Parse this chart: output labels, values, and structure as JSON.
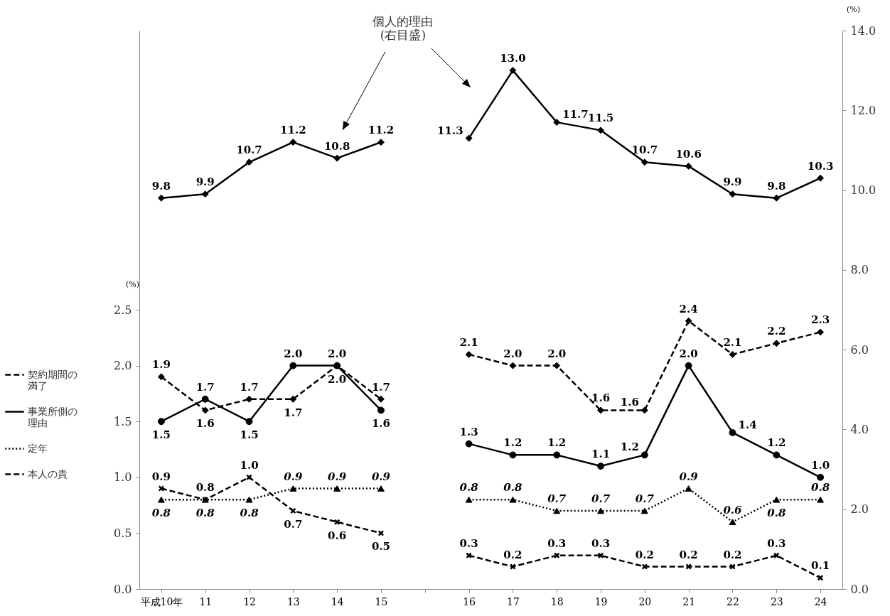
{
  "chart_data": {
    "type": "line",
    "categories": [
      "平成10年",
      "11",
      "12",
      "13",
      "14",
      "15",
      null,
      "16",
      "17",
      "18",
      "19",
      "20",
      "21",
      "22",
      "23",
      "24"
    ],
    "series": [
      {
        "color": "#000000",
        "axis": "y2",
        "marker": "diamond",
        "line_style": "solid",
        "values": [
          9.8,
          9.9,
          10.7,
          11.2,
          10.8,
          11.2,
          null,
          11.3,
          13.0,
          11.7,
          11.5,
          10.7,
          10.6,
          9.9,
          9.8,
          10.3
        ],
        "value_labels": [
          "9.8",
          "9.9",
          "10.7",
          "11.2",
          "10.8",
          "11.2",
          null,
          "11.3",
          "13.0",
          "11.7",
          "11.5",
          "10.7",
          "10.6",
          "9.9",
          "9.8",
          "10.3"
        ]
      },
      {
        "name": "契約期間の満了",
        "color": "#000000",
        "marker": "diamond",
        "line_style": "dashed",
        "values": [
          1.9,
          1.6,
          1.7,
          1.7,
          2.0,
          1.7,
          null,
          2.1,
          2.0,
          2.0,
          1.6,
          1.6,
          2.4,
          2.1,
          2.2,
          2.3
        ],
        "value_labels": [
          "1.9",
          "1.6",
          "1.7",
          "1.7",
          "2.0",
          "1.7",
          null,
          "2.1",
          "2.0",
          "2.0",
          "1.6",
          "1.6",
          "2.4",
          "2.1",
          "2.2",
          "2.3"
        ]
      },
      {
        "name": "事業所側の理由",
        "color": "#000000",
        "marker": "circle",
        "line_style": "solid",
        "values": [
          1.5,
          1.7,
          1.5,
          2.0,
          2.0,
          1.6,
          null,
          1.3,
          1.2,
          1.2,
          1.1,
          1.2,
          2.0,
          1.4,
          1.2,
          1.0
        ],
        "value_labels": [
          "1.5",
          "1.7",
          "1.5",
          "2.0",
          "2.0",
          "1.6",
          null,
          "1.3",
          "1.2",
          "1.2",
          "1.1",
          "1.2",
          "2.0",
          "1.4",
          "1.2",
          "1.0"
        ]
      },
      {
        "name": "定年",
        "color": "#000000",
        "marker": "triangle",
        "line_style": "dotted",
        "values": [
          0.8,
          0.8,
          0.8,
          0.9,
          0.9,
          0.9,
          null,
          0.8,
          0.8,
          0.7,
          0.7,
          0.7,
          0.9,
          0.6,
          0.8,
          0.8
        ],
        "value_labels": [
          "0.8",
          "0.8",
          "0.8",
          "0.9",
          "0.9",
          "0.9",
          null,
          "0.8",
          "0.8",
          "0.7",
          "0.7",
          "0.7",
          "0.9",
          "0.6",
          "0.8",
          "0.8"
        ]
      },
      {
        "name": "本人の責",
        "color": "#000000",
        "marker": "cross",
        "line_style": "dashed",
        "values": [
          0.9,
          0.8,
          1.0,
          0.7,
          0.6,
          0.5,
          null,
          0.3,
          0.2,
          0.3,
          0.3,
          0.2,
          0.2,
          0.2,
          0.3,
          0.1
        ],
        "value_labels": [
          "0.9",
          "0.8",
          "1.0",
          "0.7",
          "0.6",
          "0.5",
          null,
          "0.3",
          "0.2",
          "0.3",
          "0.3",
          "0.2",
          "0.2",
          "0.2",
          "0.3",
          "0.1"
        ]
      }
    ],
    "ylim": [
      0,
      5.0
    ],
    "yticks": [
      {
        "value": 0,
        "label": "0.0"
      },
      {
        "value": 0.5,
        "label": "0.5"
      },
      {
        "value": 1,
        "label": "1.0"
      },
      {
        "value": 1.5,
        "label": "1.5"
      },
      {
        "value": 2,
        "label": "2.0"
      },
      {
        "value": 2.5,
        "label": "2.5"
      }
    ],
    "y2lim": [
      0,
      14
    ],
    "y2ticks": [
      {
        "value": 0,
        "label": "0.0"
      },
      {
        "value": 2,
        "label": "2.0"
      },
      {
        "value": 4,
        "label": "4.0"
      },
      {
        "value": 6,
        "label": "6.0"
      },
      {
        "value": 8,
        "label": "8.0"
      },
      {
        "value": 10,
        "label": "10.0"
      },
      {
        "value": 12,
        "label": "12.0"
      },
      {
        "value": 14,
        "label": "14.0"
      }
    ],
    "ylabel": "(%)",
    "y2label": "(%)",
    "annotations": [
      "個人的理由\n(右目盛)"
    ],
    "legend": "left"
  }
}
